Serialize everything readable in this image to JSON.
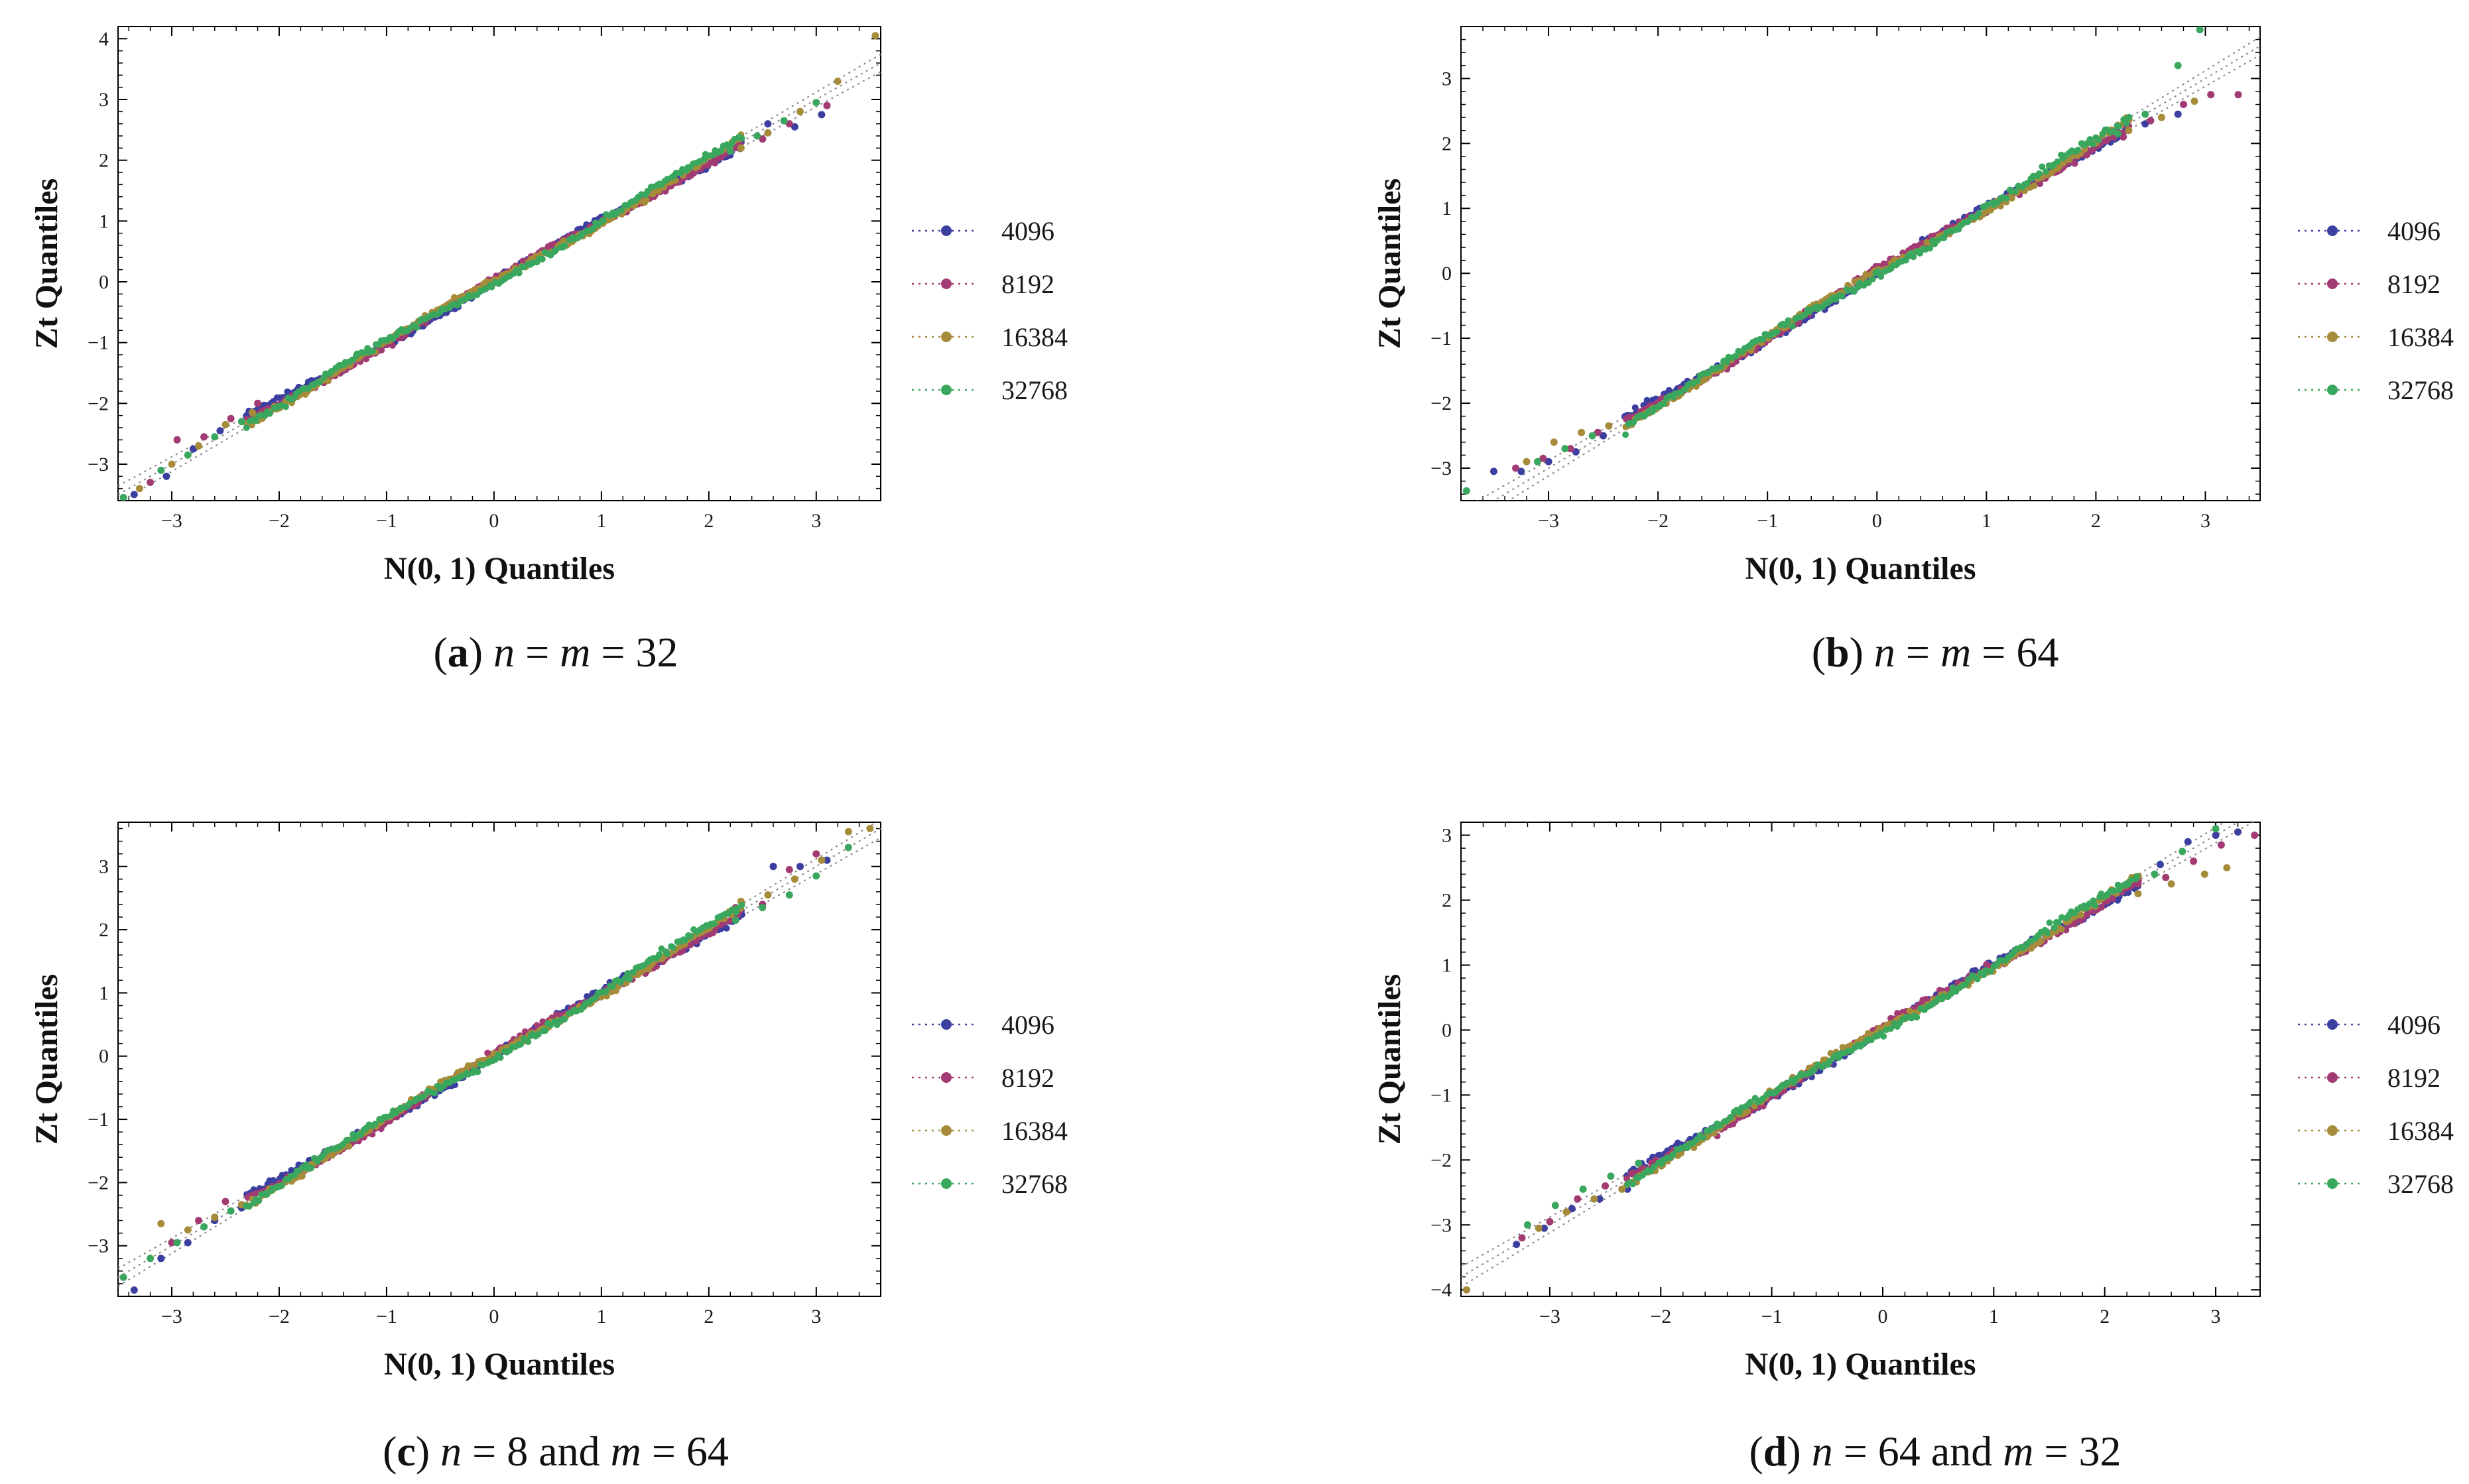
{
  "colors": {
    "series": [
      "#3b3fa0",
      "#a23a74",
      "#a68c3a",
      "#3aa75e"
    ],
    "frame": "#000000",
    "reference": "#8c8c8c"
  },
  "chart_data": [
    {
      "id": "a",
      "type": "scatter",
      "title": "",
      "caption": {
        "label": "(a)",
        "letter": "a",
        "math": "n = m = 32"
      },
      "xlabel": "N(0, 1) Quantiles",
      "ylabel": "Zt Quantiles",
      "xlim": [
        -3.5,
        3.6
      ],
      "ylim": [
        -3.6,
        4.2
      ],
      "xticks": [
        -3,
        -2,
        -1,
        0,
        1,
        2,
        3
      ],
      "yticks": [
        -3,
        -2,
        -1,
        0,
        1,
        2,
        3,
        4
      ],
      "legend": [
        "4096",
        "8192",
        "16384",
        "32768"
      ],
      "series": [
        {
          "name": "4096",
          "tail": {
            "x": [
              -3.35,
              -3.05,
              -2.8,
              -2.55,
              -2.3,
              2.3,
              2.55,
              2.8,
              3.05
            ],
            "y": [
              -3.5,
              -3.2,
              -2.75,
              -2.45,
              -2.2,
              2.3,
              2.6,
              2.55,
              2.75
            ]
          }
        },
        {
          "name": "8192",
          "tail": {
            "x": [
              -3.2,
              -2.95,
              -2.7,
              -2.45,
              -2.2,
              2.25,
              2.5,
              2.75,
              3.1
            ],
            "y": [
              -3.3,
              -2.6,
              -2.55,
              -2.25,
              -2.0,
              2.3,
              2.35,
              2.6,
              2.9
            ]
          }
        },
        {
          "name": "16384",
          "tail": {
            "x": [
              -3.3,
              -3.0,
              -2.75,
              -2.5,
              -2.25,
              2.3,
              2.55,
              2.85,
              3.2,
              3.55
            ],
            "y": [
              -3.4,
              -3.0,
              -2.7,
              -2.35,
              -2.15,
              2.2,
              2.45,
              2.8,
              3.3,
              4.05
            ]
          }
        },
        {
          "name": "32768",
          "tail": {
            "x": [
              -3.45,
              -3.1,
              -2.85,
              -2.6,
              -2.35,
              2.2,
              2.45,
              2.7,
              3.0
            ],
            "y": [
              -3.55,
              -3.1,
              -2.85,
              -2.55,
              -2.3,
              2.15,
              2.4,
              2.65,
              2.95
            ]
          }
        }
      ]
    },
    {
      "id": "b",
      "type": "scatter",
      "title": "",
      "caption": {
        "label": "(b)",
        "letter": "b",
        "math": "n = m = 64"
      },
      "xlabel": "N(0, 1) Quantiles",
      "ylabel": "Zt Quantiles",
      "xlim": [
        -3.8,
        3.5
      ],
      "ylim": [
        -3.5,
        3.8
      ],
      "xticks": [
        -3,
        -2,
        -1,
        0,
        1,
        2,
        3
      ],
      "yticks": [
        -3,
        -2,
        -1,
        0,
        1,
        2,
        3
      ],
      "legend": [
        "4096",
        "8192",
        "16384",
        "32768"
      ],
      "series": [
        {
          "name": "4096",
          "tail": {
            "x": [
              -3.5,
              -3.25,
              -3.0,
              -2.75,
              -2.5,
              2.2,
              2.45,
              2.75
            ],
            "y": [
              -3.05,
              -3.05,
              -2.9,
              -2.75,
              -2.5,
              2.1,
              2.3,
              2.45
            ]
          }
        },
        {
          "name": "8192",
          "tail": {
            "x": [
              -3.3,
              -3.05,
              -2.8,
              -2.55,
              2.25,
              2.5,
              2.8,
              3.05,
              3.3
            ],
            "y": [
              -3.0,
              -2.85,
              -2.7,
              -2.45,
              2.1,
              2.35,
              2.6,
              2.75,
              2.75
            ]
          }
        },
        {
          "name": "16384",
          "tail": {
            "x": [
              -3.2,
              -2.95,
              -2.7,
              -2.45,
              2.3,
              2.6,
              2.9
            ],
            "y": [
              -2.9,
              -2.6,
              -2.45,
              -2.35,
              2.2,
              2.4,
              2.65
            ]
          }
        },
        {
          "name": "32768",
          "tail": {
            "x": [
              -3.75,
              -3.1,
              -2.85,
              -2.6,
              2.2,
              2.45,
              2.75,
              2.95
            ],
            "y": [
              -3.35,
              -2.9,
              -2.7,
              -2.5,
              2.15,
              2.45,
              3.2,
              3.75
            ]
          }
        }
      ]
    },
    {
      "id": "c",
      "type": "scatter",
      "title": "",
      "caption": {
        "label": "(c)",
        "letter": "c",
        "math": "n = 8 and m = 64"
      },
      "xlabel": "N(0, 1) Quantiles",
      "ylabel": "Zt Quantiles",
      "xlim": [
        -3.5,
        3.6
      ],
      "ylim": [
        -3.8,
        3.7
      ],
      "xticks": [
        -3,
        -2,
        -1,
        0,
        1,
        2,
        3
      ],
      "yticks": [
        -3,
        -2,
        -1,
        0,
        1,
        2,
        3
      ],
      "legend": [
        "4096",
        "8192",
        "16384",
        "32768"
      ],
      "series": [
        {
          "name": "4096",
          "tail": {
            "x": [
              -3.35,
              -3.1,
              -2.85,
              -2.6,
              -2.35,
              2.3,
              2.6,
              2.85,
              3.1
            ],
            "y": [
              -3.7,
              -3.2,
              -2.95,
              -2.6,
              -2.4,
              2.3,
              3.0,
              3.0,
              3.1
            ]
          }
        },
        {
          "name": "8192",
          "tail": {
            "x": [
              -3.0,
              -2.75,
              -2.5,
              -2.25,
              -2.0,
              2.25,
              2.5,
              2.75,
              3.0
            ],
            "y": [
              -2.95,
              -2.6,
              -2.3,
              -2.2,
              -2.05,
              2.35,
              2.4,
              2.95,
              3.2
            ]
          }
        },
        {
          "name": "16384",
          "tail": {
            "x": [
              -3.1,
              -2.85,
              -2.6,
              -2.35,
              -2.1,
              2.3,
              2.55,
              2.8,
              3.05,
              3.3,
              3.5
            ],
            "y": [
              -2.65,
              -2.75,
              -2.55,
              -2.35,
              -2.15,
              2.45,
              2.55,
              2.8,
              3.1,
              3.55,
              3.6
            ]
          }
        },
        {
          "name": "32768",
          "tail": {
            "x": [
              -3.45,
              -3.2,
              -2.95,
              -2.7,
              -2.45,
              2.25,
              2.5,
              2.75,
              3.0,
              3.3
            ],
            "y": [
              -3.5,
              -3.2,
              -2.95,
              -2.7,
              -2.45,
              2.15,
              2.35,
              2.55,
              2.85,
              3.3
            ]
          }
        }
      ]
    },
    {
      "id": "d",
      "type": "scatter",
      "title": "",
      "caption": {
        "label": "(d)",
        "letter": "d",
        "math": "n = 64 and m = 32"
      },
      "xlabel": "N(0, 1) Quantiles",
      "ylabel": "Zt Quantiles",
      "xlim": [
        -3.8,
        3.4
      ],
      "ylim": [
        -4.1,
        3.2
      ],
      "xticks": [
        -3,
        -2,
        -1,
        0,
        1,
        2,
        3
      ],
      "yticks": [
        -4,
        -3,
        -2,
        -1,
        0,
        1,
        2,
        3
      ],
      "legend": [
        "4096",
        "8192",
        "16384",
        "32768"
      ],
      "series": [
        {
          "name": "4096",
          "tail": {
            "x": [
              -3.3,
              -3.05,
              -2.8,
              -2.55,
              -2.3,
              2.25,
              2.5,
              2.75,
              3.0,
              3.2
            ],
            "y": [
              -3.3,
              -3.05,
              -2.75,
              -2.6,
              -2.45,
              2.2,
              2.55,
              2.9,
              3.0,
              3.05
            ]
          }
        },
        {
          "name": "8192",
          "tail": {
            "x": [
              -3.25,
              -3.0,
              -2.75,
              -2.5,
              -2.25,
              2.3,
              2.55,
              2.8,
              3.05,
              3.35
            ],
            "y": [
              -3.2,
              -2.95,
              -2.6,
              -2.4,
              -2.2,
              2.25,
              2.35,
              2.6,
              2.85,
              3.0
            ]
          }
        },
        {
          "name": "16384",
          "tail": {
            "x": [
              -3.75,
              -3.1,
              -2.85,
              -2.6,
              -2.35,
              2.3,
              2.6,
              2.9,
              3.1
            ],
            "y": [
              -4.0,
              -3.05,
              -2.8,
              -2.6,
              -2.45,
              2.1,
              2.25,
              2.4,
              2.5
            ]
          }
        },
        {
          "name": "32768",
          "tail": {
            "x": [
              -3.2,
              -2.95,
              -2.7,
              -2.45,
              -2.2,
              2.2,
              2.45,
              2.7,
              3.0
            ],
            "y": [
              -3.0,
              -2.7,
              -2.45,
              -2.25,
              -2.05,
              2.25,
              2.4,
              2.75,
              3.1
            ]
          }
        }
      ]
    }
  ]
}
